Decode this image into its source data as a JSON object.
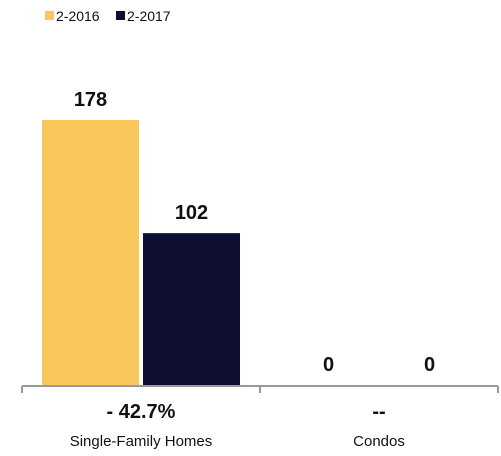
{
  "chart_data": {
    "type": "bar",
    "categories": [
      "Single-Family Homes",
      "Condos"
    ],
    "series": [
      {
        "name": "2-2016",
        "values": [
          178,
          0
        ]
      },
      {
        "name": "2-2017",
        "values": [
          102,
          0
        ]
      }
    ],
    "changes": [
      "- 42.7%",
      "--"
    ],
    "value_labels": [
      [
        "178",
        "0"
      ],
      [
        "102",
        "0"
      ]
    ],
    "ylim": [
      0,
      178
    ],
    "grid": false,
    "legend_position": "top-left",
    "colors": {
      "2-2016": "#F9C85C",
      "2-2017": "#0E0F33",
      "axis": "#999999"
    }
  }
}
